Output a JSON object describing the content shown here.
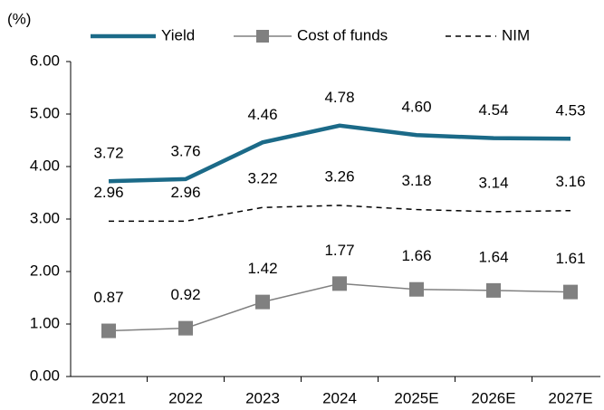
{
  "chart_data": {
    "type": "line",
    "y_label": "(%)",
    "categories": [
      "2021",
      "2022",
      "2023",
      "2024",
      "2025E",
      "2026E",
      "2027E"
    ],
    "series": [
      {
        "name": "Yield",
        "color": "#1b6a88",
        "values": [
          3.72,
          3.76,
          4.46,
          4.78,
          4.6,
          4.54,
          4.53
        ],
        "value_labels": [
          "3.72",
          "3.76",
          "4.46",
          "4.78",
          "4.60",
          "4.54",
          "4.53"
        ]
      },
      {
        "name": "Cost of funds",
        "color": "#808080",
        "values": [
          0.87,
          0.92,
          1.42,
          1.77,
          1.66,
          1.64,
          1.61
        ]
      },
      {
        "name": "NIM",
        "color": "#000000",
        "values": [
          2.96,
          2.96,
          3.22,
          3.26,
          3.18,
          3.14,
          3.16
        ]
      }
    ],
    "ylim": [
      0,
      6
    ],
    "yticks": [
      {
        "value": 0,
        "label": "0.00"
      },
      {
        "value": 1,
        "label": "1.00"
      },
      {
        "value": 2,
        "label": "2.00"
      },
      {
        "value": 3,
        "label": "3.00"
      },
      {
        "value": 4,
        "label": "4.00"
      },
      {
        "value": 5,
        "label": "5.00"
      },
      {
        "value": 6,
        "label": "6.00"
      }
    ]
  }
}
